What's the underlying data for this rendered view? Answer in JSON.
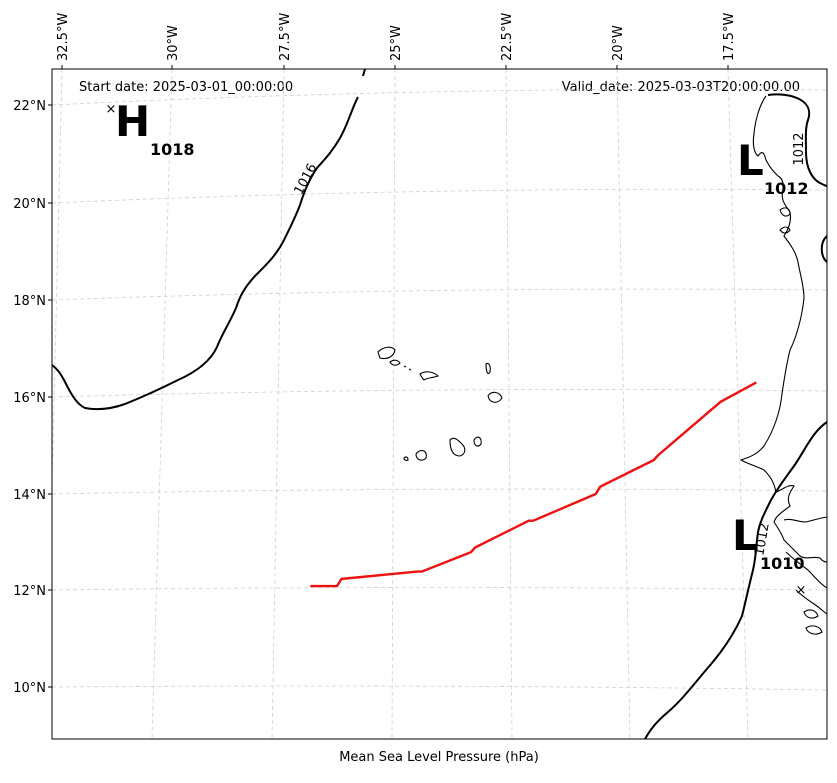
{
  "header": {
    "start_date": "Start date: 2025-03-01_00:00:00",
    "valid_date": "Valid_date: 2025-03-03T20:00:00.00"
  },
  "xlabel": "Mean Sea Level Pressure (hPa)",
  "lon_ticks": [
    "32.5°W",
    "30°W",
    "27.5°W",
    "25°W",
    "22.5°W",
    "20°W",
    "17.5°W"
  ],
  "lat_ticks": [
    "22°N",
    "20°N",
    "18°N",
    "16°N",
    "14°N",
    "12°N",
    "10°N"
  ],
  "pressure_centers": [
    {
      "type": "H",
      "value": "1018",
      "lon": -31.3,
      "lat": 21.8
    },
    {
      "type": "L",
      "value": "1012",
      "lon": -17.3,
      "lat": 21.0
    },
    {
      "type": "L",
      "value": "1010",
      "lon": -17.2,
      "lat": 12.6
    }
  ],
  "isobar_labels": [
    "1016",
    "1012",
    "1012"
  ],
  "track": {
    "color": "#ee1111",
    "points": [
      {
        "lon": -26.9,
        "lat": 12.1
      },
      {
        "lon": -26.3,
        "lat": 12.1
      },
      {
        "lon": -26.2,
        "lat": 12.25
      },
      {
        "lon": -24.5,
        "lat": 12.4
      },
      {
        "lon": -24.4,
        "lat": 12.4
      },
      {
        "lon": -23.3,
        "lat": 12.8
      },
      {
        "lon": -23.2,
        "lat": 12.9
      },
      {
        "lon": -22.0,
        "lat": 13.45
      },
      {
        "lon": -21.9,
        "lat": 13.45
      },
      {
        "lon": -20.5,
        "lat": 14.0
      },
      {
        "lon": -20.4,
        "lat": 14.15
      },
      {
        "lon": -19.2,
        "lat": 14.7
      },
      {
        "lon": -19.1,
        "lat": 14.8
      },
      {
        "lon": -17.7,
        "lat": 15.9
      },
      {
        "lon": -16.9,
        "lat": 16.3
      }
    ]
  }
}
